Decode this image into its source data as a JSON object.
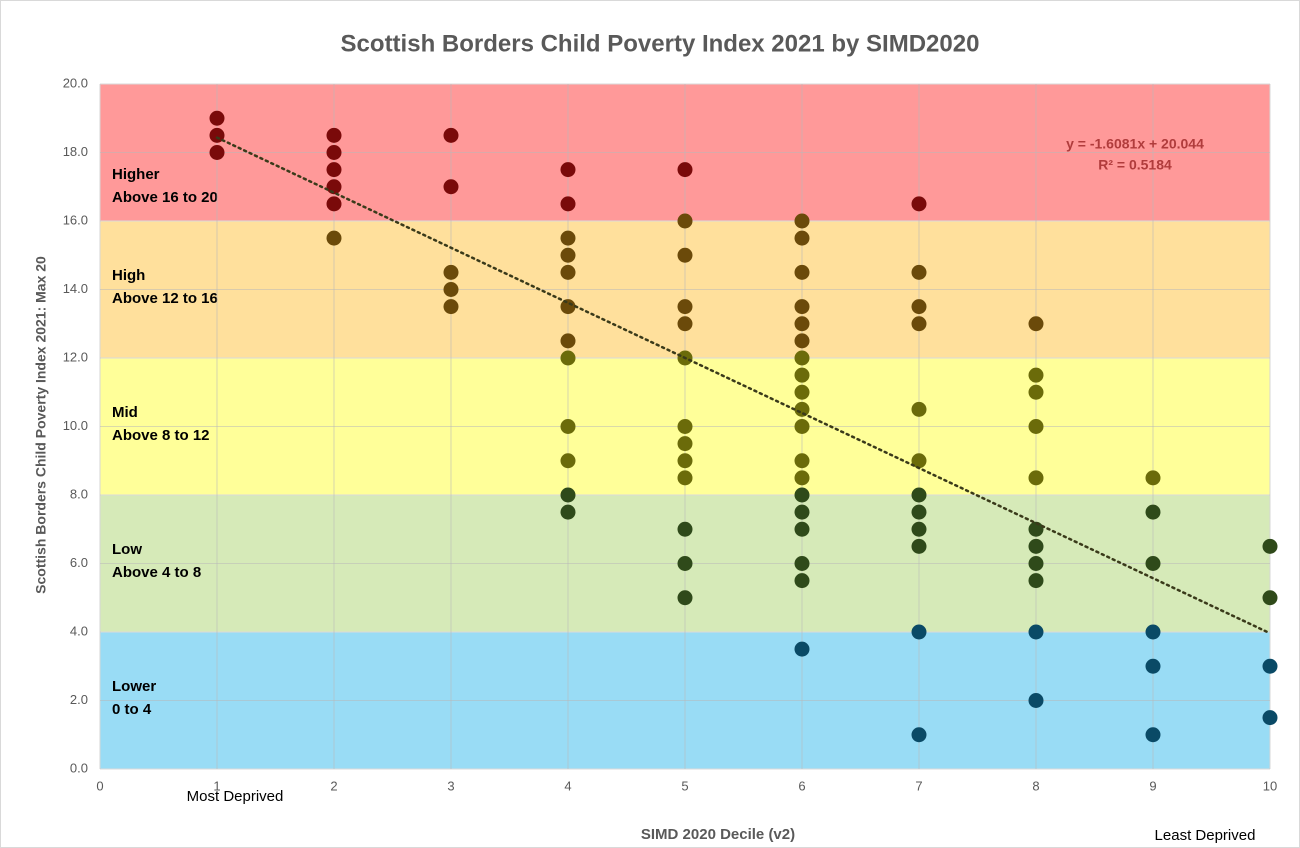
{
  "chart_data": {
    "type": "scatter",
    "title": "Scottish Borders Child Poverty Index 2021 by SIMD2020",
    "x_label": "SIMD 2020 Decile (v2)",
    "y_label": "Scottish Borders Child Poverty Index 2021: Max 20",
    "x_left_note": "Most Deprived",
    "x_right_note": "Least Deprived",
    "xlim": [
      0,
      10
    ],
    "xticks": [
      0,
      1,
      2,
      3,
      4,
      5,
      6,
      7,
      8,
      9,
      10
    ],
    "ylim": [
      0,
      20
    ],
    "yticks": [
      {
        "value": 0,
        "label": "0.0"
      },
      {
        "value": 2,
        "label": "2.0"
      },
      {
        "value": 4,
        "label": "4.0"
      },
      {
        "value": 6,
        "label": "6.0"
      },
      {
        "value": 8,
        "label": "8.0"
      },
      {
        "value": 10,
        "label": "10.0"
      },
      {
        "value": 12,
        "label": "12.0"
      },
      {
        "value": 14,
        "label": "14.0"
      },
      {
        "value": 16,
        "label": "16.0"
      },
      {
        "value": 18,
        "label": "18.0"
      },
      {
        "value": 20,
        "label": "20.0"
      }
    ],
    "grid": true,
    "bands": [
      {
        "name": "Higher",
        "range": "Above 16 to 20",
        "from": 16,
        "to": 20,
        "color": "#ff9999",
        "point_color": "#7a0a0a"
      },
      {
        "name": "High",
        "range": "Above 12 to 16",
        "from": 12,
        "to": 16,
        "color": "#ffe09c",
        "point_color": "#6b4a0a"
      },
      {
        "name": "Mid",
        "range": "Above 8 to 12",
        "from": 8,
        "to": 12,
        "color": "#ffff99",
        "point_color": "#6b6b0a"
      },
      {
        "name": "Low",
        "range": "Above 4 to 8",
        "from": 4,
        "to": 8,
        "color": "#d6eab8",
        "point_color": "#2f4a1a"
      },
      {
        "name": "Lower",
        "range": "0 to 4",
        "from": 0,
        "to": 4,
        "color": "#99dcf5",
        "point_color": "#0a4a66"
      }
    ],
    "x": [
      1,
      1,
      1,
      2,
      2,
      2,
      2,
      2,
      2,
      3,
      3,
      3,
      3,
      3,
      4,
      4,
      4,
      4,
      4,
      4,
      4,
      4,
      4,
      4,
      4,
      4,
      5,
      5,
      5,
      5,
      5,
      5,
      5,
      5,
      5,
      5,
      5,
      5,
      5,
      6,
      6,
      6,
      6,
      6,
      6,
      6,
      6,
      6,
      6,
      6,
      6,
      6,
      6,
      6,
      6,
      6,
      6,
      6,
      7,
      7,
      7,
      7,
      7,
      7,
      7,
      7,
      7,
      7,
      7,
      7,
      8,
      8,
      8,
      8,
      8,
      8,
      8,
      8,
      8,
      8,
      8,
      9,
      9,
      9,
      9,
      9,
      9,
      10,
      10,
      10,
      10
    ],
    "y": [
      19,
      18.5,
      18,
      18.5,
      18,
      17.5,
      17,
      16.5,
      15.5,
      18.5,
      17,
      14.5,
      14,
      13.5,
      17.5,
      16.5,
      15.5,
      15,
      14.5,
      13.5,
      12.5,
      12,
      10,
      9,
      8,
      7.5,
      17.5,
      16,
      15,
      13.5,
      13,
      12,
      10,
      9.5,
      9,
      8.5,
      7,
      6,
      5,
      16,
      15.5,
      14.5,
      13.5,
      13,
      12.5,
      12,
      11.5,
      11,
      10.5,
      10,
      9,
      8.5,
      8,
      7.5,
      7,
      6,
      5.5,
      3.5,
      16.5,
      14.5,
      13.5,
      13,
      10.5,
      9,
      8,
      7.5,
      7,
      6.5,
      4,
      1,
      13,
      11.5,
      11,
      10,
      8.5,
      7,
      6.5,
      6,
      5.5,
      4,
      2,
      8.5,
      7.5,
      6,
      4,
      3,
      1,
      6.5,
      5,
      3,
      1.5
    ],
    "trendline": {
      "equation": "y = -1.6081x + 20.044",
      "r2_label": "R² = 0.5184",
      "slope": -1.6081,
      "intercept": 20.044,
      "color": "#3a3a1a"
    }
  }
}
